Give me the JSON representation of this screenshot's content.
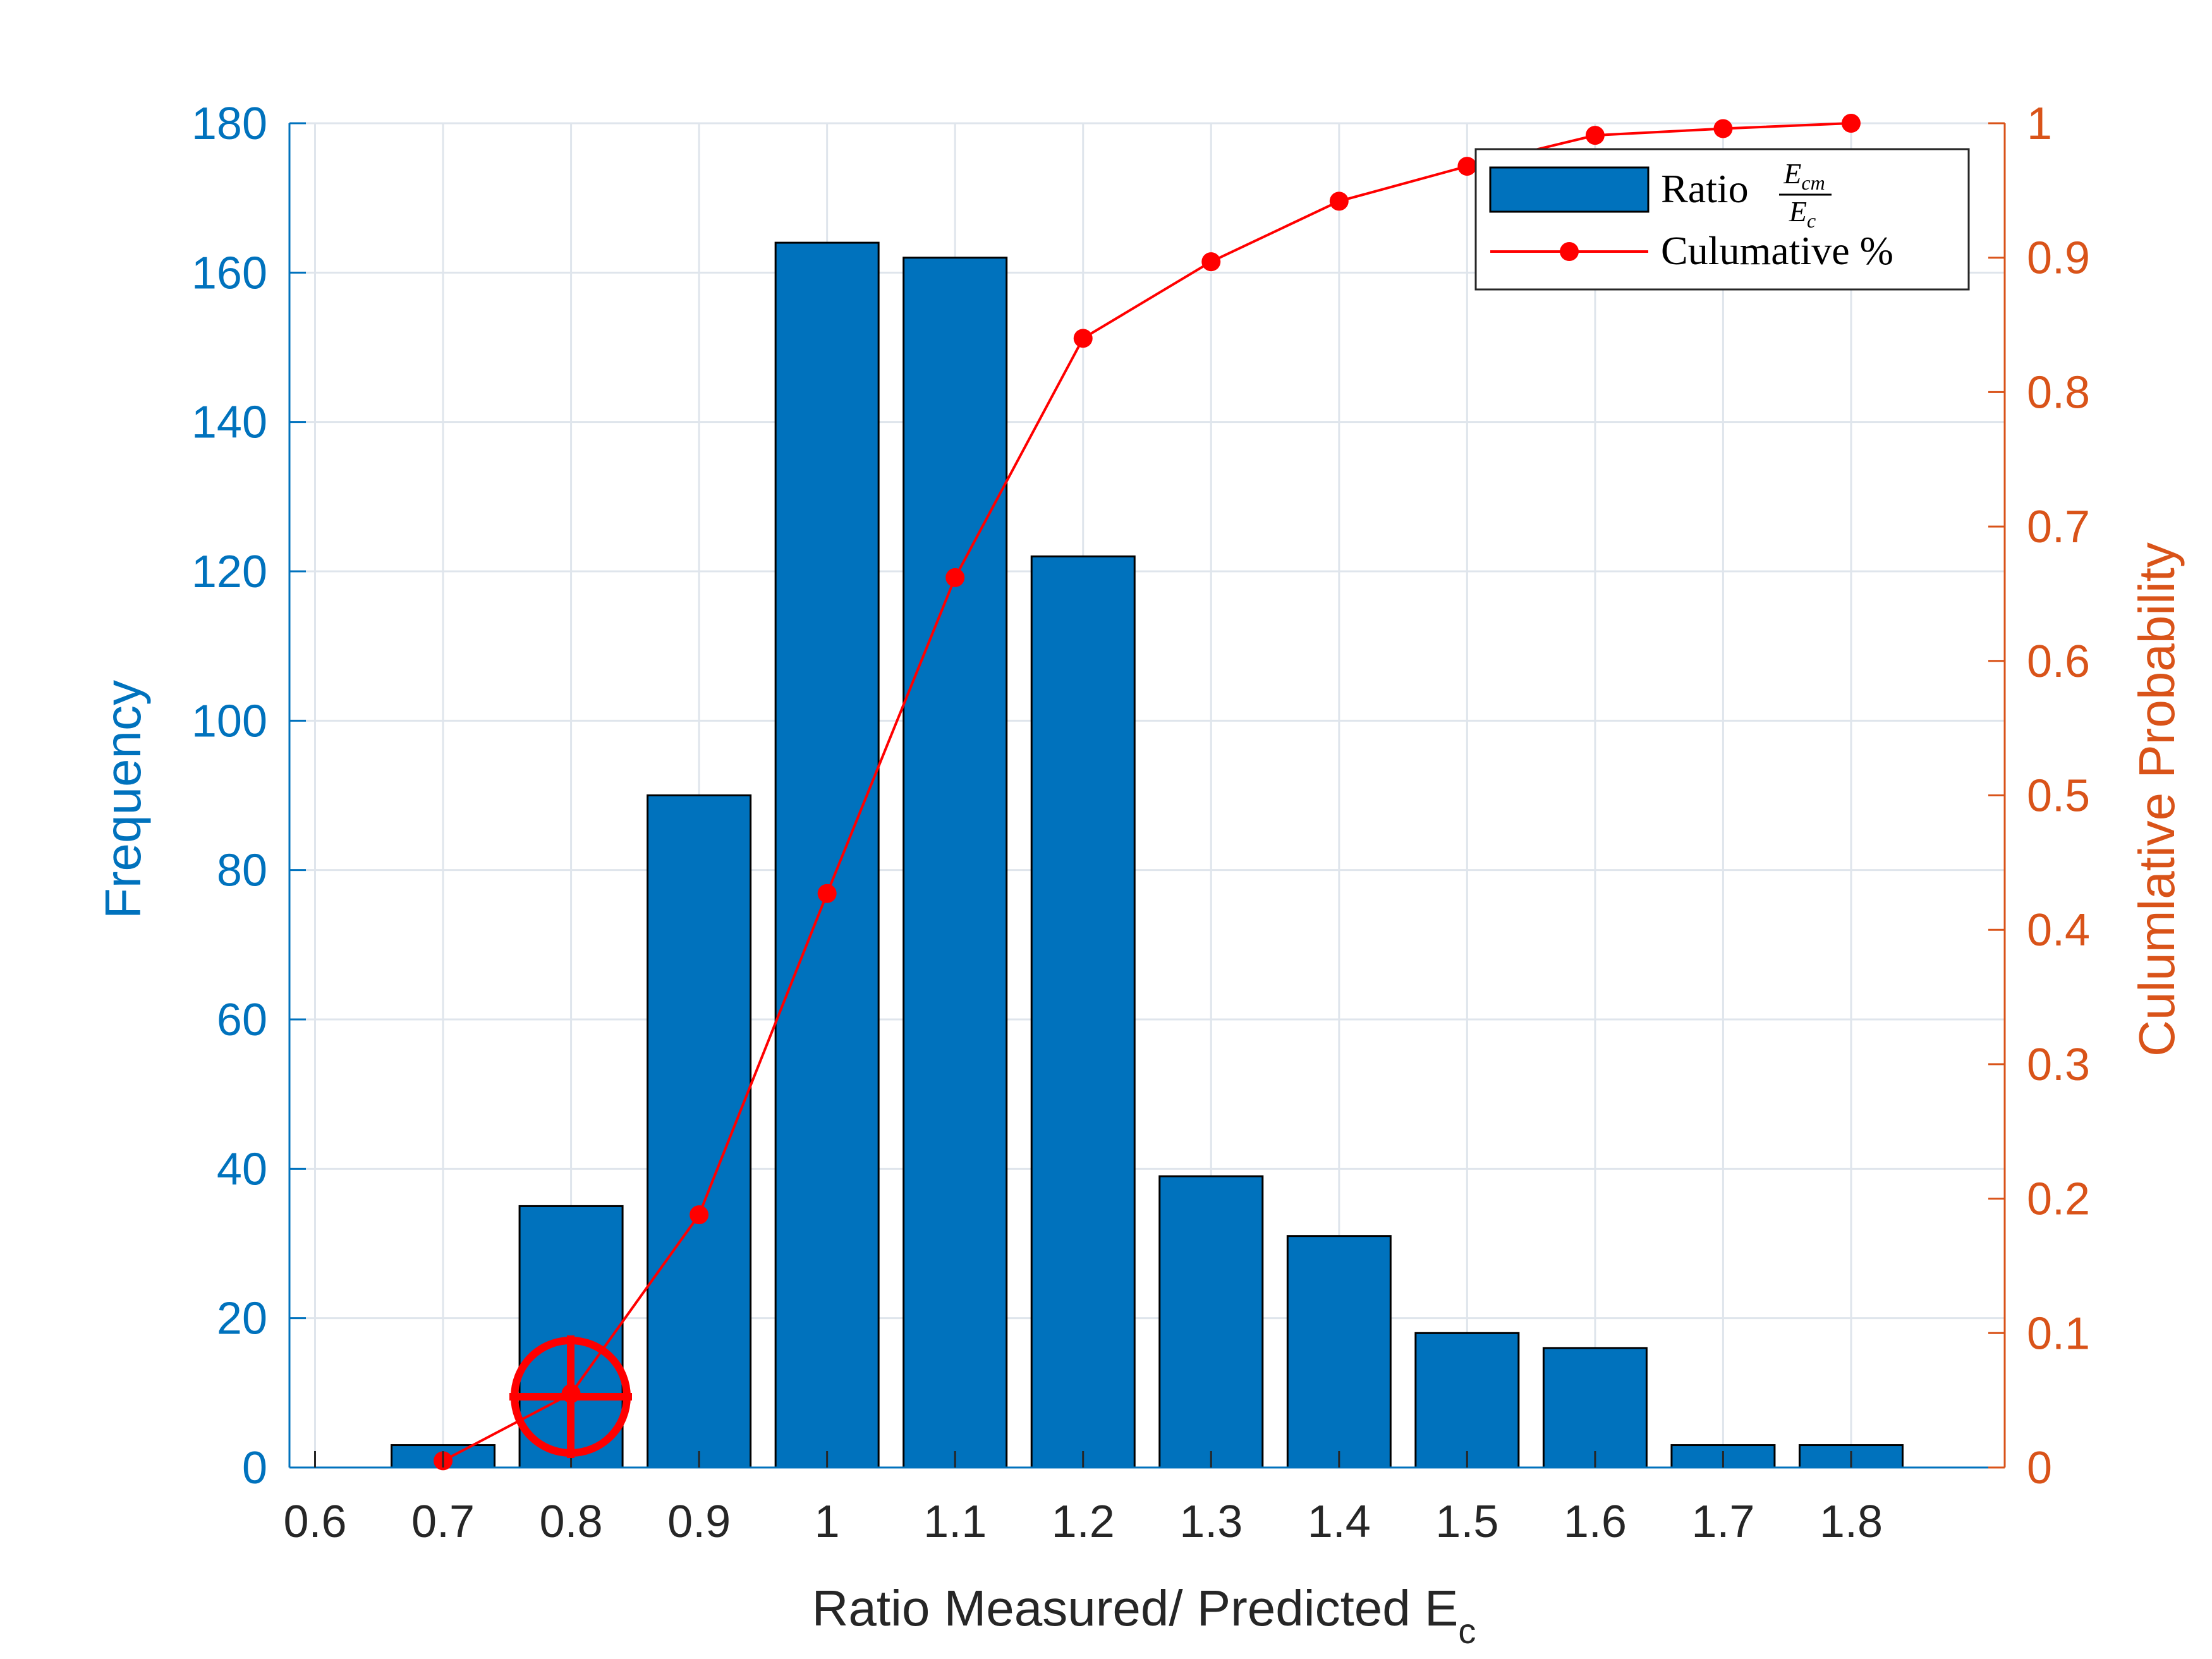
{
  "chart_data": {
    "type": "bar",
    "xlabel": "Ratio Measured/ Predicted E",
    "xlabel_subscript": "c",
    "ylabel_left": "Frequency",
    "ylabel_right": "Culumlative Probability",
    "xlim": [
      0.58,
      1.92
    ],
    "ylim_left": [
      0,
      180
    ],
    "ylim_right": [
      0,
      1
    ],
    "x_ticks": [
      "0.6",
      "0.7",
      "0.8",
      "0.9",
      "1",
      "1.1",
      "1.2",
      "1.3",
      "1.4",
      "1.5",
      "1.6",
      "1.7",
      "1.8"
    ],
    "y_ticks_left": [
      "0",
      "20",
      "40",
      "60",
      "80",
      "100",
      "120",
      "140",
      "160",
      "180"
    ],
    "y_ticks_right": [
      "0",
      "0.1",
      "0.2",
      "0.3",
      "0.4",
      "0.5",
      "0.6",
      "0.7",
      "0.8",
      "0.9",
      "1"
    ],
    "grid": true,
    "legend_position": "top-right",
    "series": [
      {
        "name": "Ratio",
        "name_fraction": {
          "numerator": "E",
          "numerator_sub": "cm",
          "denominator": "E",
          "denominator_sub": "c"
        },
        "type": "bar",
        "axis": "left",
        "x": [
          0.7,
          0.8,
          0.9,
          1.0,
          1.1,
          1.2,
          1.3,
          1.4,
          1.5,
          1.6,
          1.7,
          1.8
        ],
        "values": [
          3,
          35,
          90,
          164,
          162,
          122,
          39,
          31,
          18,
          16,
          3,
          3
        ],
        "color": "#0072BD"
      },
      {
        "name": "Culumative %",
        "type": "line",
        "axis": "right",
        "x": [
          0.7,
          0.8,
          0.9,
          1.0,
          1.1,
          1.2,
          1.3,
          1.4,
          1.5,
          1.6,
          1.7,
          1.8
        ],
        "values": [
          0.005,
          0.055,
          0.188,
          0.427,
          0.662,
          0.84,
          0.897,
          0.942,
          0.968,
          0.991,
          0.996,
          1.0
        ],
        "color": "#FF0000"
      }
    ],
    "colors": {
      "left_axis": "#0072BD",
      "right_axis": "#D95319",
      "grid": "#DFE5EC",
      "text": "#262626"
    }
  }
}
